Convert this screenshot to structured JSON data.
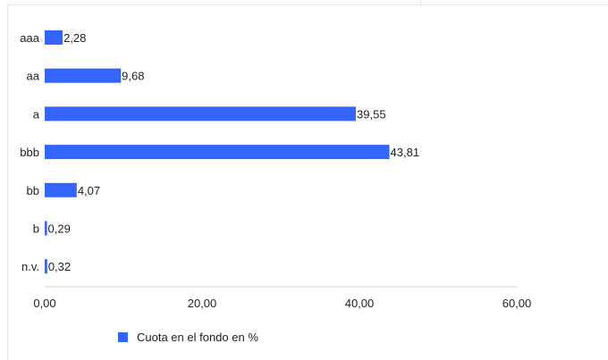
{
  "chart_data": {
    "type": "bar",
    "orientation": "horizontal",
    "categories": [
      "aaa",
      "aa",
      "a",
      "bbb",
      "bb",
      "b",
      "n.v."
    ],
    "series": [
      {
        "name": "Cuota en el fondo en %",
        "values": [
          2.28,
          9.68,
          39.55,
          43.81,
          4.07,
          0.29,
          0.32
        ],
        "labels": [
          "2,28",
          "9,68",
          "39,55",
          "43,81",
          "4,07",
          "0,29",
          "0,32"
        ]
      }
    ],
    "xlim": [
      0,
      60
    ],
    "xticks": [
      0,
      20,
      40,
      60
    ],
    "xtick_labels": [
      "0,00",
      "20,00",
      "40,00",
      "60,00"
    ],
    "grid": false,
    "legend_position": "bottom-left",
    "bar_color": "#3366ff"
  }
}
